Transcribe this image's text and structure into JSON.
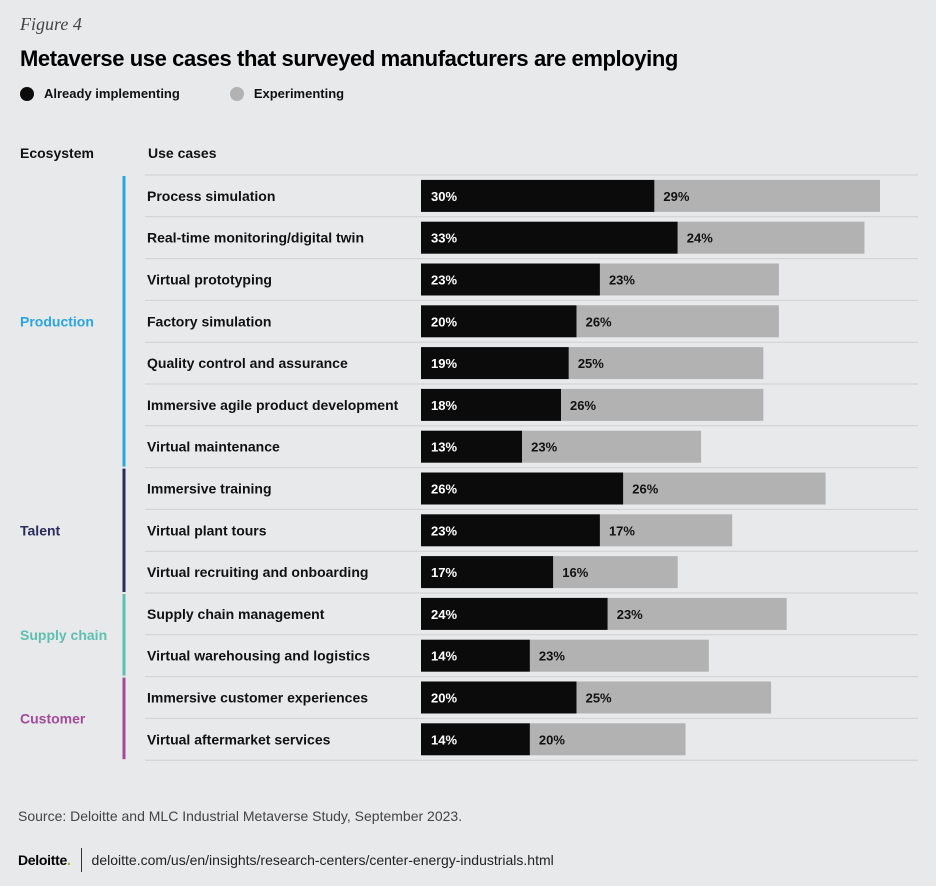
{
  "figure_label": "Figure 4",
  "colors": {
    "implementing": "#0b0b0b",
    "experimenting": "#b2b2b2",
    "production": "#2aa6de",
    "talent": "#2a2c5e",
    "supply_chain": "#5ebfb1",
    "customer": "#a24b99"
  },
  "chart_data": {
    "type": "bar",
    "orientation": "horizontal",
    "stacked": true,
    "title": "Metaverse use cases that surveyed manufacturers are employing",
    "legend": [
      {
        "key": "implementing",
        "label": "Already implementing"
      },
      {
        "key": "experimenting",
        "label": "Experimenting"
      }
    ],
    "column_headers": {
      "ecosystem": "Ecosystem",
      "use_cases": "Use cases"
    },
    "xlim": [
      0,
      62
    ],
    "groups": [
      {
        "name": "Production",
        "color_key": "production",
        "items": [
          {
            "label": "Process  simulation",
            "implementing": 30,
            "experimenting": 29
          },
          {
            "label": "Real-time monitoring/digital twin",
            "implementing": 33,
            "experimenting": 24
          },
          {
            "label": "Virtual prototyping",
            "implementing": 23,
            "experimenting": 23
          },
          {
            "label": "Factory simulation",
            "implementing": 20,
            "experimenting": 26
          },
          {
            "label": "Quality control and assurance",
            "implementing": 19,
            "experimenting": 25
          },
          {
            "label": "Immersive agile product development",
            "implementing": 18,
            "experimenting": 26
          },
          {
            "label": "Virtual maintenance",
            "implementing": 13,
            "experimenting": 23
          }
        ]
      },
      {
        "name": "Talent",
        "color_key": "talent",
        "items": [
          {
            "label": "Immersive training",
            "implementing": 26,
            "experimenting": 26
          },
          {
            "label": "Virtual plant tours",
            "implementing": 23,
            "experimenting": 17
          },
          {
            "label": "Virtual recruiting and onboarding",
            "implementing": 17,
            "experimenting": 16
          }
        ]
      },
      {
        "name": "Supply chain",
        "color_key": "supply_chain",
        "items": [
          {
            "label": "Supply chain management",
            "implementing": 24,
            "experimenting": 23
          },
          {
            "label": "Virtual warehousing and logistics",
            "implementing": 14,
            "experimenting": 23
          }
        ]
      },
      {
        "name": "Customer",
        "color_key": "customer",
        "items": [
          {
            "label": "Immersive customer experiences",
            "implementing": 20,
            "experimenting": 25
          },
          {
            "label": "Virtual aftermarket services",
            "implementing": 14,
            "experimenting": 20
          }
        ]
      }
    ]
  },
  "source": "Source: Deloitte and MLC Industrial Metaverse Study, September 2023.",
  "footer": {
    "brand": "Deloitte",
    "brand_dot": ".",
    "url": "deloitte.com/us/en/insights/research-centers/center-energy-industrials.html"
  }
}
